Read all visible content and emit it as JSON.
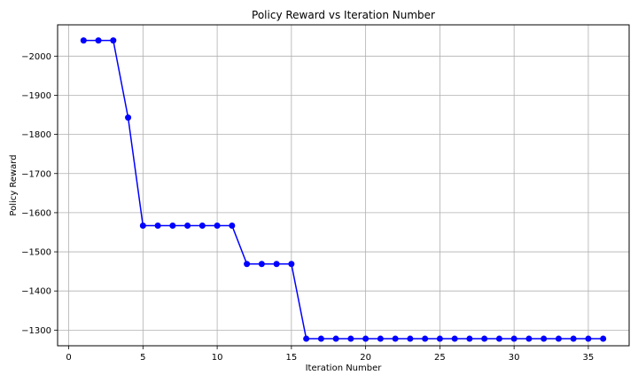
{
  "chart_data": {
    "type": "line",
    "title": "Policy Reward vs Iteration Number",
    "xlabel": "Iteration Number",
    "ylabel": "Policy Reward",
    "xlim": [
      -0.75,
      37.75
    ],
    "ylim": [
      -1260,
      -2080
    ],
    "y_axis_inverted": true,
    "grid": true,
    "xticks": [
      0,
      5,
      10,
      15,
      20,
      25,
      30,
      35
    ],
    "yticks": [
      -2000,
      -1900,
      -1800,
      -1700,
      -1600,
      -1500,
      -1400,
      -1300
    ],
    "ytick_labels": [
      "−2000",
      "−1900",
      "−1800",
      "−1700",
      "−1600",
      "−1500",
      "−1400",
      "−1300"
    ],
    "line_color": "#0000ff",
    "marker": "circle",
    "series": [
      {
        "x": [
          1,
          2,
          3,
          4,
          5,
          6,
          7,
          8,
          9,
          10,
          11,
          12,
          13,
          14,
          15,
          16,
          17,
          18,
          19,
          20,
          21,
          22,
          23,
          24,
          25,
          26,
          27,
          28,
          29,
          30,
          31,
          32,
          33,
          34,
          35,
          36
        ],
        "values": [
          -2040,
          -2040,
          -2040,
          -1843,
          -1567,
          -1567,
          -1567,
          -1567,
          -1567,
          -1567,
          -1567,
          -1469,
          -1469,
          -1469,
          -1469,
          -1278,
          -1278,
          -1278,
          -1278,
          -1278,
          -1278,
          -1278,
          -1278,
          -1278,
          -1278,
          -1278,
          -1278,
          -1278,
          -1278,
          -1278,
          -1278,
          -1278,
          -1278,
          -1278,
          -1278,
          -1278
        ]
      }
    ]
  }
}
